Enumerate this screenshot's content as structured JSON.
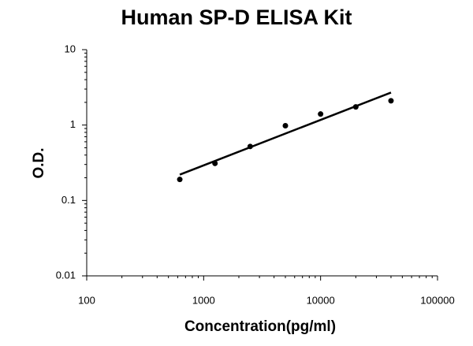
{
  "chart_data": {
    "type": "scatter",
    "title": "Human SP-D ELISA Kit",
    "x_label": "Concentration(pg/ml)",
    "y_label": "O.D.",
    "log_x": true,
    "log_y": true,
    "xlim": [
      100,
      100000
    ],
    "ylim": [
      0.01,
      10
    ],
    "xticks": [
      100,
      1000,
      10000,
      100000
    ],
    "yticks": [
      0.01,
      0.1,
      1,
      10
    ],
    "series": [
      {
        "type": "scatter",
        "color": "#000000",
        "x": [
          625,
          1250,
          2500,
          5000,
          10000,
          20000,
          40000
        ],
        "values": [
          0.19,
          0.31,
          0.52,
          0.98,
          1.4,
          1.74,
          2.1
        ]
      },
      {
        "type": "line",
        "color": "#000000",
        "x": [
          625,
          40000
        ],
        "values": [
          0.22,
          2.7
        ]
      }
    ]
  }
}
